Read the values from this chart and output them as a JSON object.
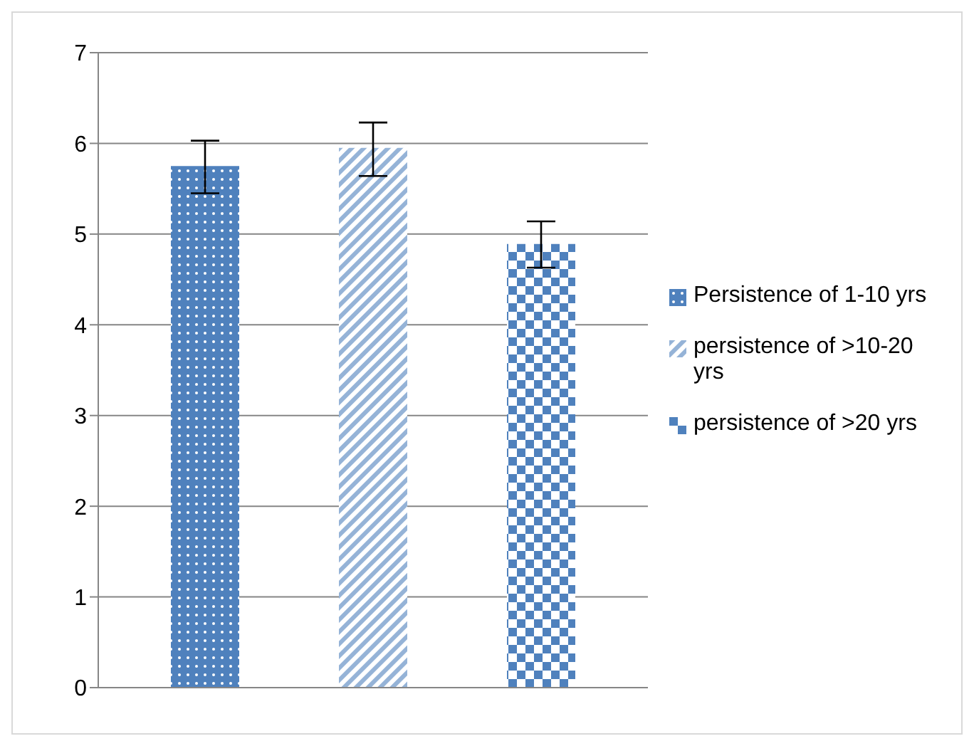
{
  "chart_data": {
    "type": "bar",
    "categories": [
      null
    ],
    "series": [
      {
        "name": "Persistence of 1-10 yrs",
        "color": "#4f81bd",
        "values": [
          5.75
        ],
        "errors": [
          [
            5.45,
            6.03
          ]
        ]
      },
      {
        "name": "persistence of >10-20 yrs",
        "color": "#95b3d7",
        "values": [
          5.95
        ],
        "errors": [
          [
            5.64,
            6.23
          ]
        ]
      },
      {
        "name": "persistence of >20 yrs",
        "color": "#4f81bd",
        "values": [
          4.89
        ],
        "errors": [
          [
            4.63,
            5.14
          ]
        ]
      }
    ],
    "ylim": [
      0,
      7
    ],
    "yticks": [
      0,
      1,
      2,
      3,
      4,
      5,
      6,
      7
    ],
    "grid": "y",
    "legend": "right"
  }
}
